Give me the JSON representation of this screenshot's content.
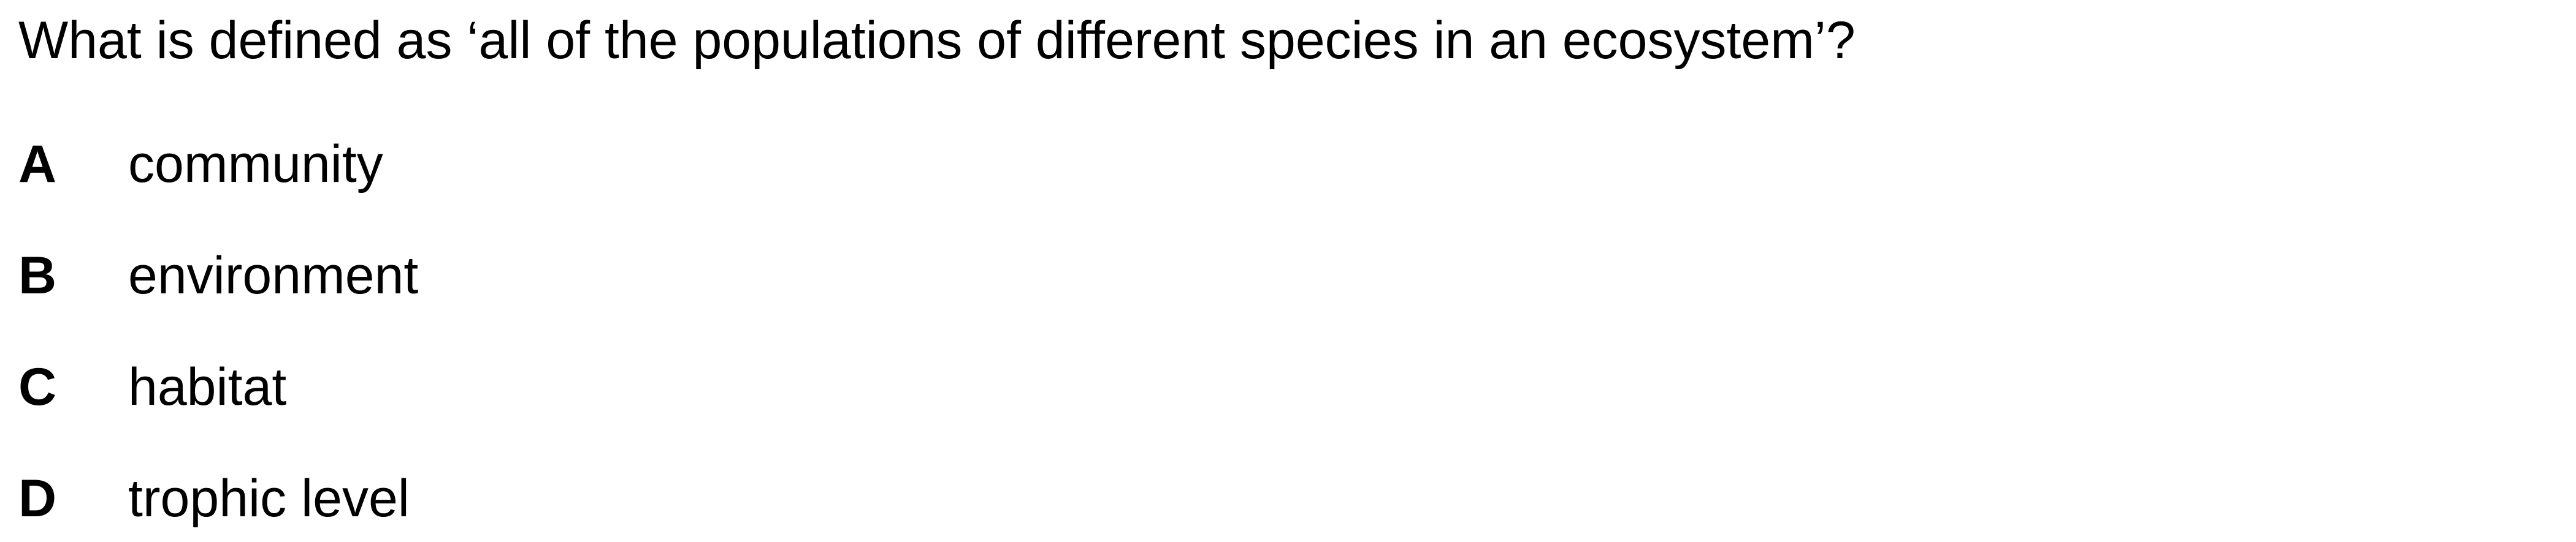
{
  "question": {
    "text": "What is defined as ‘all of the populations of different species in an ecosystem’?"
  },
  "options": [
    {
      "letter": "A",
      "text": "community"
    },
    {
      "letter": "B",
      "text": "environment"
    },
    {
      "letter": "C",
      "text": "habitat"
    },
    {
      "letter": "D",
      "text": "trophic level"
    }
  ]
}
